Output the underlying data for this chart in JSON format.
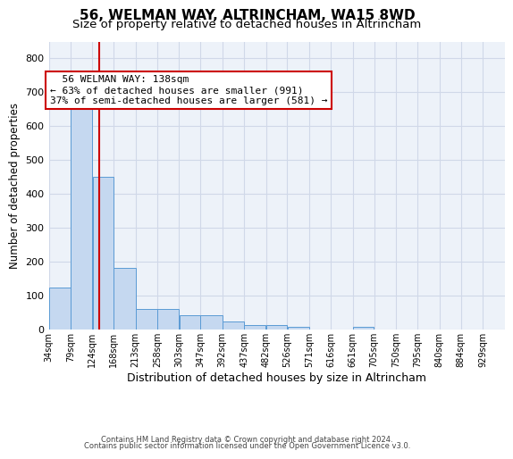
{
  "title1": "56, WELMAN WAY, ALTRINCHAM, WA15 8WD",
  "title2": "Size of property relative to detached houses in Altrincham",
  "xlabel": "Distribution of detached houses by size in Altrincham",
  "ylabel": "Number of detached properties",
  "footer1": "Contains HM Land Registry data © Crown copyright and database right 2024.",
  "footer2": "Contains public sector information licensed under the Open Government Licence v3.0.",
  "annotation_line1": "56 WELMAN WAY: 138sqm",
  "annotation_line2": "← 63% of detached houses are smaller (991)",
  "annotation_line3": "37% of semi-detached houses are larger (581) →",
  "bin_labels": [
    "34sqm",
    "79sqm",
    "124sqm",
    "168sqm",
    "213sqm",
    "258sqm",
    "303sqm",
    "347sqm",
    "392sqm",
    "437sqm",
    "482sqm",
    "526sqm",
    "571sqm",
    "616sqm",
    "661sqm",
    "705sqm",
    "750sqm",
    "795sqm",
    "840sqm",
    "884sqm",
    "929sqm"
  ],
  "bin_edges": [
    34,
    79,
    124,
    168,
    213,
    258,
    303,
    347,
    392,
    437,
    482,
    526,
    571,
    616,
    661,
    705,
    750,
    795,
    840,
    884,
    929,
    974
  ],
  "bar_heights": [
    125,
    660,
    450,
    183,
    60,
    60,
    43,
    43,
    25,
    13,
    13,
    8,
    0,
    0,
    7,
    0,
    0,
    0,
    0,
    0,
    0
  ],
  "bar_color": "#c5d8f0",
  "bar_edge_color": "#5b9bd5",
  "vline_x": 138,
  "vline_color": "#cc0000",
  "ylim": [
    0,
    850
  ],
  "yticks": [
    0,
    100,
    200,
    300,
    400,
    500,
    600,
    700,
    800
  ],
  "grid_color": "#d0d8e8",
  "bg_color": "#edf2f9",
  "title_fontsize": 11,
  "subtitle_fontsize": 9.5,
  "annotation_box_color": "#cc0000",
  "annotation_fontsize": 8,
  "ylabel_fontsize": 8.5,
  "xlabel_fontsize": 9,
  "xtick_fontsize": 7,
  "ytick_fontsize": 8,
  "footer_fontsize": 6
}
